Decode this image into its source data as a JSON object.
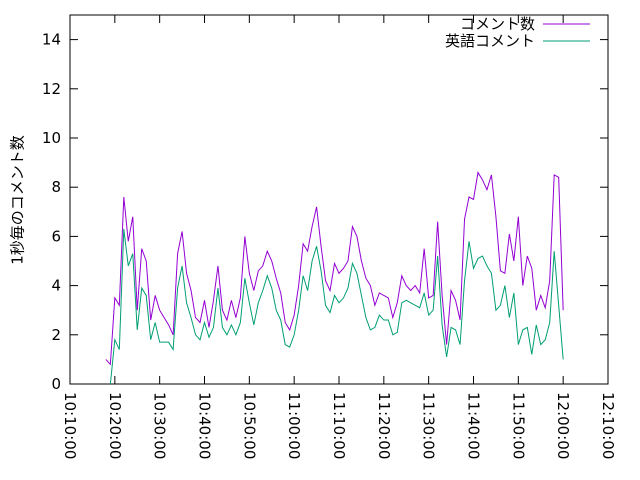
{
  "chart_data": {
    "type": "line",
    "ylabel": "1秒毎のコメント数",
    "x": [
      "10:18:00",
      "10:19:00",
      "10:20:00",
      "10:21:00",
      "10:22:00",
      "10:23:00",
      "10:24:00",
      "10:25:00",
      "10:26:00",
      "10:27:00",
      "10:28:00",
      "10:29:00",
      "10:30:00",
      "10:31:00",
      "10:32:00",
      "10:33:00",
      "10:34:00",
      "10:35:00",
      "10:36:00",
      "10:37:00",
      "10:38:00",
      "10:39:00",
      "10:40:00",
      "10:41:00",
      "10:42:00",
      "10:43:00",
      "10:44:00",
      "10:45:00",
      "10:46:00",
      "10:47:00",
      "10:48:00",
      "10:49:00",
      "10:50:00",
      "10:51:00",
      "10:52:00",
      "10:53:00",
      "10:54:00",
      "10:55:00",
      "10:56:00",
      "10:57:00",
      "10:58:00",
      "10:59:00",
      "11:00:00",
      "11:01:00",
      "11:02:00",
      "11:03:00",
      "11:04:00",
      "11:05:00",
      "11:06:00",
      "11:07:00",
      "11:08:00",
      "11:09:00",
      "11:10:00",
      "11:11:00",
      "11:12:00",
      "11:13:00",
      "11:14:00",
      "11:15:00",
      "11:16:00",
      "11:17:00",
      "11:18:00",
      "11:19:00",
      "11:20:00",
      "11:21:00",
      "11:22:00",
      "11:23:00",
      "11:24:00",
      "11:25:00",
      "11:26:00",
      "11:27:00",
      "11:28:00",
      "11:29:00",
      "11:30:00",
      "11:31:00",
      "11:32:00",
      "11:33:00",
      "11:34:00",
      "11:35:00",
      "11:36:00",
      "11:37:00",
      "11:38:00",
      "11:39:00",
      "11:40:00",
      "11:41:00",
      "11:42:00",
      "11:43:00",
      "11:44:00",
      "11:45:00",
      "11:46:00",
      "11:47:00",
      "11:48:00",
      "11:49:00",
      "11:50:00",
      "11:51:00",
      "11:52:00",
      "11:53:00",
      "11:54:00",
      "11:55:00",
      "11:56:00",
      "11:57:00",
      "11:58:00",
      "11:59:00",
      "12:00:00"
    ],
    "series": [
      {
        "name": "コメント数",
        "color": "#9400d3",
        "values": [
          1.0,
          0.8,
          3.5,
          3.2,
          7.6,
          5.8,
          6.8,
          3.0,
          5.5,
          5.0,
          2.6,
          3.6,
          3.0,
          2.7,
          2.4,
          2.0,
          5.3,
          6.2,
          4.5,
          3.8,
          2.7,
          2.5,
          3.4,
          2.3,
          3.4,
          4.8,
          3.0,
          2.6,
          3.4,
          2.7,
          3.5,
          6.0,
          4.5,
          3.8,
          4.6,
          4.8,
          5.4,
          5.0,
          4.3,
          3.7,
          2.5,
          2.2,
          2.8,
          4.0,
          5.7,
          5.4,
          6.4,
          7.2,
          5.6,
          4.2,
          3.8,
          4.9,
          4.5,
          4.7,
          5.0,
          6.4,
          6.0,
          5.0,
          4.3,
          4.0,
          3.2,
          3.7,
          3.6,
          3.5,
          2.7,
          3.3,
          4.4,
          4.0,
          3.8,
          4.0,
          3.7,
          5.5,
          3.5,
          3.6,
          6.6,
          3.6,
          1.6,
          3.8,
          3.4,
          2.6,
          6.7,
          7.6,
          7.5,
          8.6,
          8.3,
          7.9,
          8.5,
          6.8,
          4.6,
          4.5,
          6.1,
          5.0,
          6.8,
          4.0,
          5.2,
          4.7,
          3.0,
          3.6,
          3.1,
          4.2,
          8.5,
          8.4,
          3.0
        ]
      },
      {
        "name": "英語コメント",
        "color": "#009e73",
        "values": [
          null,
          0,
          1.8,
          1.4,
          6.3,
          4.8,
          5.3,
          2.2,
          3.9,
          3.6,
          1.8,
          2.5,
          1.7,
          1.7,
          1.7,
          1.4,
          3.9,
          4.8,
          3.3,
          2.7,
          2.0,
          1.8,
          2.5,
          1.9,
          2.3,
          3.9,
          2.3,
          2.0,
          2.4,
          2.0,
          2.5,
          4.3,
          3.3,
          2.4,
          3.3,
          3.8,
          4.4,
          3.9,
          3.0,
          2.6,
          1.6,
          1.5,
          2.0,
          3.0,
          4.4,
          3.8,
          5.0,
          5.6,
          4.6,
          3.2,
          2.9,
          3.6,
          3.3,
          3.5,
          3.9,
          4.9,
          4.5,
          3.6,
          2.7,
          2.2,
          2.3,
          2.8,
          2.6,
          2.6,
          2.0,
          2.1,
          3.3,
          3.4,
          3.3,
          3.2,
          3.1,
          3.7,
          2.8,
          3.0,
          5.2,
          2.4,
          1.1,
          2.3,
          2.2,
          1.6,
          4.2,
          5.8,
          4.7,
          5.1,
          5.2,
          4.8,
          4.5,
          3.0,
          3.2,
          4.0,
          2.7,
          3.7,
          1.6,
          2.2,
          2.3,
          1.2,
          2.4,
          1.6,
          1.8,
          2.5,
          5.4,
          3.2,
          1.0
        ]
      }
    ],
    "xlim": [
      "10:10:00",
      "12:10:00"
    ],
    "xticks": [
      "10:10:00",
      "10:20:00",
      "10:30:00",
      "10:40:00",
      "10:50:00",
      "11:00:00",
      "11:10:00",
      "11:20:00",
      "11:30:00",
      "11:40:00",
      "11:50:00",
      "12:00:00",
      "12:10:00"
    ],
    "ylim": [
      0,
      15
    ],
    "yticks": [
      0,
      2,
      4,
      6,
      8,
      10,
      12,
      14
    ],
    "legend": "top-right"
  }
}
